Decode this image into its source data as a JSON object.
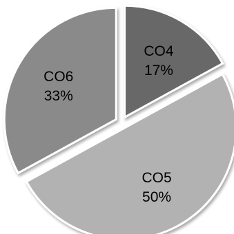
{
  "chart_data": {
    "type": "pie",
    "slices": [
      {
        "label": "CO4",
        "value": 17,
        "value_label": "17%",
        "color": "#686868"
      },
      {
        "label": "CO5",
        "value": 50,
        "value_label": "50%",
        "color": "#b2b2b2"
      },
      {
        "label": "CO6",
        "value": 33,
        "value_label": "33%",
        "color": "#8a8a8a"
      }
    ],
    "exploded": true,
    "start_angle": "12 o'clock",
    "direction": "clockwise",
    "legend": "none",
    "title": ""
  }
}
